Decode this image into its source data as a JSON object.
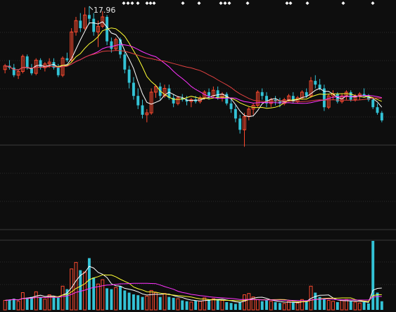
{
  "chart_data": [
    {
      "type": "candlestick",
      "panel": "price",
      "annotations": [
        {
          "text": "17.96",
          "kind": "max-price-label"
        }
      ],
      "colors": {
        "up": "#ff4a2f",
        "down": "#33c3d6",
        "background": "#0e0e0e",
        "grid": "#2a2a2a"
      },
      "candles": [
        [
          14.6,
          14.9,
          14.4,
          14.8
        ],
        [
          14.8,
          15.1,
          14.6,
          14.7
        ],
        [
          14.7,
          14.9,
          14.2,
          14.3
        ],
        [
          14.3,
          14.6,
          14.1,
          14.5
        ],
        [
          14.5,
          15.4,
          14.4,
          15.3
        ],
        [
          15.3,
          15.4,
          14.6,
          14.7
        ],
        [
          14.7,
          14.9,
          14.3,
          14.4
        ],
        [
          14.4,
          15.2,
          14.3,
          15.1
        ],
        [
          15.1,
          15.2,
          14.6,
          14.7
        ],
        [
          14.7,
          15.0,
          14.5,
          14.9
        ],
        [
          14.9,
          15.2,
          14.7,
          15.0
        ],
        [
          15.0,
          15.2,
          14.6,
          14.7
        ],
        [
          14.7,
          14.9,
          14.2,
          14.3
        ],
        [
          14.3,
          15.3,
          14.2,
          15.2
        ],
        [
          15.2,
          15.5,
          15.0,
          15.1
        ],
        [
          15.1,
          16.8,
          15.0,
          16.6
        ],
        [
          16.6,
          17.4,
          16.4,
          17.2
        ],
        [
          17.2,
          17.6,
          16.6,
          16.8
        ],
        [
          16.8,
          17.9,
          16.7,
          17.5
        ],
        [
          17.5,
          17.96,
          17.0,
          17.3
        ],
        [
          17.3,
          17.6,
          16.4,
          16.6
        ],
        [
          16.6,
          17.2,
          15.8,
          16.9
        ],
        [
          16.9,
          17.7,
          16.8,
          17.4
        ],
        [
          17.4,
          17.5,
          15.9,
          16.1
        ],
        [
          16.1,
          16.3,
          15.5,
          15.7
        ],
        [
          15.7,
          16.3,
          15.6,
          16.2
        ],
        [
          16.2,
          16.3,
          15.2,
          15.4
        ],
        [
          15.4,
          15.6,
          14.4,
          14.6
        ],
        [
          14.6,
          14.8,
          13.6,
          13.9
        ],
        [
          13.9,
          14.2,
          13.0,
          13.2
        ],
        [
          13.2,
          13.6,
          12.5,
          12.7
        ],
        [
          12.7,
          13.0,
          12.0,
          12.2
        ],
        [
          12.2,
          12.5,
          11.8,
          12.3
        ],
        [
          12.3,
          13.6,
          12.2,
          13.4
        ],
        [
          13.4,
          13.8,
          13.1,
          13.7
        ],
        [
          13.7,
          13.9,
          13.0,
          13.2
        ],
        [
          13.2,
          13.8,
          13.1,
          13.6
        ],
        [
          13.6,
          13.8,
          13.0,
          13.1
        ],
        [
          13.1,
          13.3,
          12.6,
          12.8
        ],
        [
          12.8,
          13.2,
          12.7,
          13.1
        ],
        [
          13.1,
          13.3,
          12.9,
          13.0
        ],
        [
          13.0,
          13.2,
          12.7,
          12.9
        ],
        [
          12.9,
          13.1,
          12.6,
          13.0
        ],
        [
          13.0,
          13.2,
          12.8,
          12.9
        ],
        [
          12.9,
          13.2,
          12.8,
          13.1
        ],
        [
          13.1,
          13.5,
          13.0,
          13.4
        ],
        [
          13.4,
          13.6,
          13.0,
          13.2
        ],
        [
          13.2,
          13.7,
          13.1,
          13.5
        ],
        [
          13.5,
          13.7,
          13.0,
          13.1
        ],
        [
          13.1,
          13.4,
          12.9,
          13.3
        ],
        [
          13.3,
          13.4,
          12.7,
          12.8
        ],
        [
          12.8,
          13.0,
          12.3,
          12.5
        ],
        [
          12.5,
          12.7,
          11.8,
          12.0
        ],
        [
          12.0,
          12.2,
          11.2,
          11.4
        ],
        [
          11.4,
          12.3,
          10.5,
          12.1
        ],
        [
          12.1,
          12.6,
          11.9,
          12.5
        ],
        [
          12.5,
          12.8,
          12.2,
          12.7
        ],
        [
          12.7,
          13.5,
          12.6,
          13.4
        ],
        [
          13.4,
          13.6,
          13.0,
          13.2
        ],
        [
          13.2,
          13.4,
          12.6,
          12.8
        ],
        [
          12.8,
          13.1,
          12.6,
          13.0
        ],
        [
          13.0,
          13.2,
          12.7,
          12.9
        ],
        [
          12.9,
          13.1,
          12.6,
          12.8
        ],
        [
          12.8,
          13.1,
          12.7,
          13.0
        ],
        [
          13.0,
          13.3,
          12.9,
          13.2
        ],
        [
          13.2,
          13.4,
          12.8,
          12.9
        ],
        [
          12.9,
          13.2,
          12.8,
          13.1
        ],
        [
          13.1,
          13.5,
          13.0,
          13.4
        ],
        [
          13.4,
          13.6,
          13.1,
          13.2
        ],
        [
          13.2,
          14.2,
          13.1,
          14.0
        ],
        [
          14.0,
          14.3,
          13.6,
          13.8
        ],
        [
          13.8,
          14.1,
          13.5,
          13.6
        ],
        [
          13.6,
          13.8,
          12.4,
          12.6
        ],
        [
          12.6,
          13.3,
          12.5,
          13.2
        ],
        [
          13.2,
          13.5,
          13.0,
          13.3
        ],
        [
          13.3,
          13.4,
          12.8,
          12.9
        ],
        [
          12.9,
          13.3,
          12.8,
          13.2
        ],
        [
          13.2,
          13.5,
          13.0,
          13.4
        ],
        [
          13.4,
          13.5,
          12.9,
          13.0
        ],
        [
          13.0,
          13.3,
          12.9,
          13.2
        ],
        [
          13.2,
          13.4,
          13.0,
          13.3
        ],
        [
          13.3,
          13.6,
          13.1,
          13.2
        ],
        [
          13.2,
          13.3,
          12.9,
          13.0
        ],
        [
          13.0,
          13.1,
          12.5,
          12.6
        ],
        [
          12.6,
          12.8,
          12.2,
          12.3
        ],
        [
          12.3,
          12.4,
          11.8,
          11.9
        ]
      ]
    },
    {
      "type": "bar",
      "panel": "volume",
      "colors": {
        "up": "#ff4a2f",
        "down": "#33c3d6"
      },
      "values": [
        22,
        24,
        26,
        20,
        40,
        28,
        30,
        42,
        30,
        25,
        35,
        30,
        28,
        55,
        48,
        95,
        110,
        92,
        88,
        120,
        75,
        60,
        70,
        50,
        48,
        52,
        55,
        45,
        40,
        36,
        34,
        30,
        32,
        45,
        40,
        30,
        38,
        30,
        28,
        26,
        22,
        20,
        18,
        22,
        20,
        28,
        24,
        26,
        24,
        22,
        18,
        16,
        14,
        18,
        35,
        38,
        30,
        24,
        20,
        22,
        20,
        18,
        16,
        15,
        20,
        18,
        16,
        24,
        20,
        55,
        40,
        30,
        26,
        22,
        20,
        18,
        22,
        24,
        20,
        18,
        16,
        18,
        15,
        160,
        40,
        20
      ]
    }
  ]
}
